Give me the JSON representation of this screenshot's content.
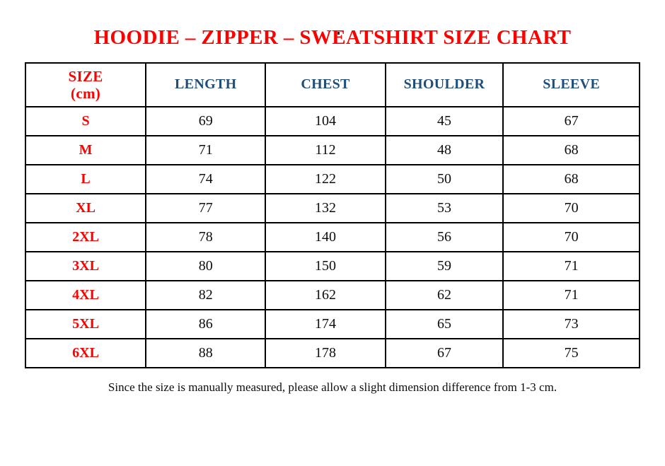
{
  "page": {
    "title": "HOODIE – ZIPPER – SWEATSHIRT SIZE CHART",
    "footnote": "Since the size is manually measured, please allow a slight dimension difference from 1-3 cm."
  },
  "colors": {
    "title_red": "#FF0000",
    "size_label_red": "#FF0000",
    "column_header_blue": "#1F4E79",
    "value_text": "#0D0D0D",
    "table_border": "#000000",
    "background": "#FFFFFF"
  },
  "table": {
    "size_header": {
      "line1": "SIZE",
      "line2": "(cm)"
    },
    "measure_headers": [
      "LENGTH",
      "CHEST",
      "SHOULDER",
      "SLEEVE"
    ],
    "rows": [
      {
        "size": "S",
        "length": "69",
        "chest": "104",
        "shoulder": "45",
        "sleeve": "67"
      },
      {
        "size": "M",
        "length": "71",
        "chest": "112",
        "shoulder": "48",
        "sleeve": "68"
      },
      {
        "size": "L",
        "length": "74",
        "chest": "122",
        "shoulder": "50",
        "sleeve": "68"
      },
      {
        "size": "XL",
        "length": "77",
        "chest": "132",
        "shoulder": "53",
        "sleeve": "70"
      },
      {
        "size": "2XL",
        "length": "78",
        "chest": "140",
        "shoulder": "56",
        "sleeve": "70"
      },
      {
        "size": "3XL",
        "length": "80",
        "chest": "150",
        "shoulder": "59",
        "sleeve": "71"
      },
      {
        "size": "4XL",
        "length": "82",
        "chest": "162",
        "shoulder": "62",
        "sleeve": "71"
      },
      {
        "size": "5XL",
        "length": "86",
        "chest": "174",
        "shoulder": "65",
        "sleeve": "73"
      },
      {
        "size": "6XL",
        "length": "88",
        "chest": "178",
        "shoulder": "67",
        "sleeve": "75"
      }
    ]
  }
}
